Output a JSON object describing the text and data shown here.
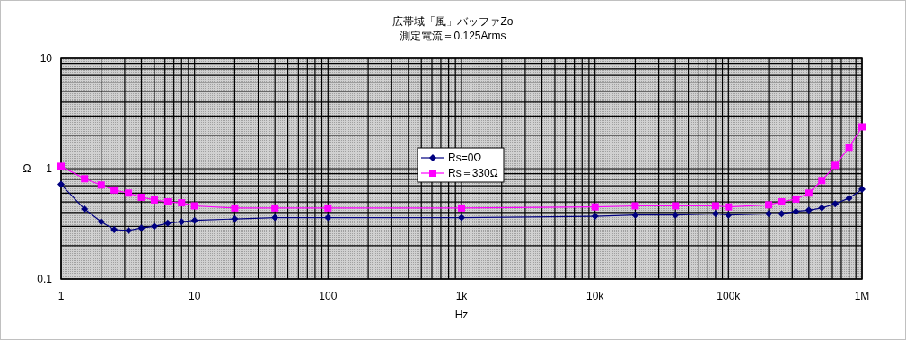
{
  "chart_data": {
    "type": "line",
    "title": "広帯域「風」バッファZo",
    "subtitle": "測定電流＝0.125Arms",
    "xlabel": "Hz",
    "ylabel": "Ω",
    "x": [
      1,
      1.5,
      2,
      2.5,
      3.2,
      4,
      5,
      6.3,
      8,
      10,
      20,
      40,
      100,
      1000,
      10000,
      20000,
      40000,
      80000,
      100000,
      200000,
      250000,
      320000,
      400000,
      500000,
      630000,
      800000,
      1000000
    ],
    "series": [
      {
        "name": "Rs=0Ω",
        "color": "#000080",
        "marker": "diamond",
        "values": [
          0.72,
          0.43,
          0.33,
          0.28,
          0.275,
          0.29,
          0.3,
          0.32,
          0.33,
          0.34,
          0.35,
          0.36,
          0.36,
          0.36,
          0.37,
          0.38,
          0.38,
          0.39,
          0.38,
          0.39,
          0.39,
          0.41,
          0.42,
          0.44,
          0.48,
          0.54,
          0.65
        ]
      },
      {
        "name": "Rs＝330Ω",
        "color": "#ff00ff",
        "marker": "square",
        "values": [
          1.05,
          0.81,
          0.71,
          0.64,
          0.6,
          0.55,
          0.52,
          0.5,
          0.49,
          0.46,
          0.44,
          0.44,
          0.44,
          0.44,
          0.45,
          0.46,
          0.46,
          0.46,
          0.45,
          0.47,
          0.5,
          0.53,
          0.6,
          0.78,
          1.07,
          1.56,
          2.39
        ]
      }
    ],
    "xlim": [
      1,
      1000000
    ],
    "ylim": [
      0.1,
      10
    ],
    "xticks": [
      1,
      10,
      100,
      {
        "value": 1000,
        "label": "1k"
      },
      {
        "value": 10000,
        "label": "10k"
      },
      {
        "value": 100000,
        "label": "100k"
      },
      {
        "value": 1000000,
        "label": "1M"
      }
    ],
    "yticks": [
      0.1,
      1,
      10
    ],
    "log": "xy",
    "grid": true,
    "legend": "center",
    "line_style": "solid"
  }
}
